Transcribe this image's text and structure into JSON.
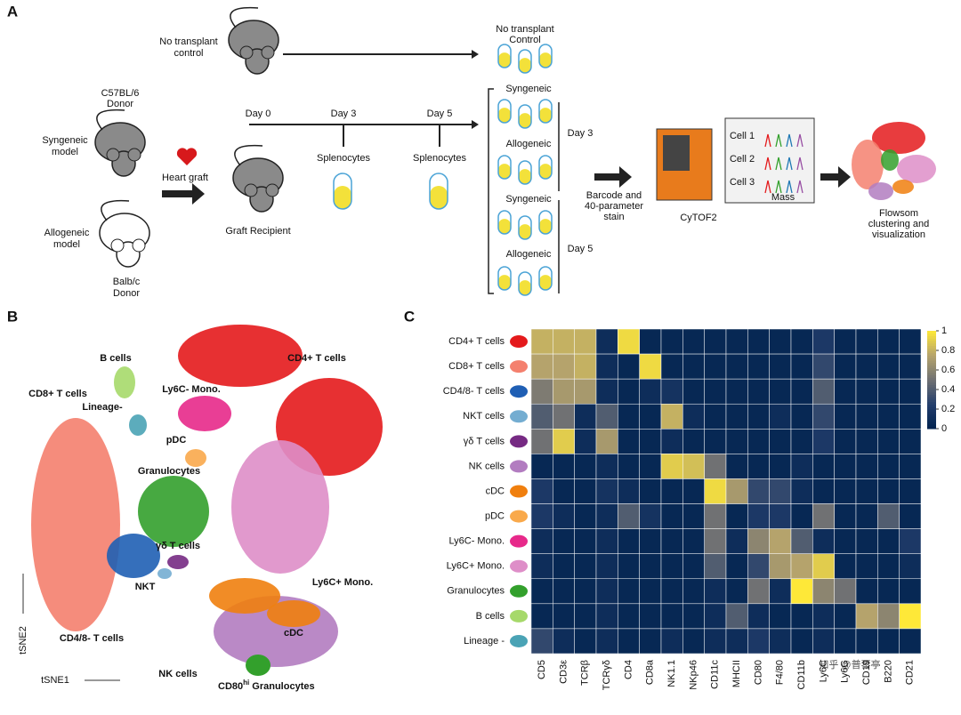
{
  "panel_a": {
    "label": "A",
    "no_transplant": [
      "No transplant",
      "control"
    ],
    "donor": [
      "C57BL/6",
      "Donor"
    ],
    "syngeneic_model": [
      "Syngeneic",
      "model"
    ],
    "allogeneic_model": [
      "Allogeneic",
      "model"
    ],
    "balb_donor": [
      "Balb/c",
      "Donor"
    ],
    "heart_graft": "Heart graft",
    "graft_recipient": "Graft Recipient",
    "days": [
      "Day 0",
      "Day 3",
      "Day 5"
    ],
    "splenocytes": [
      "Splenocytes",
      "Splenocytes"
    ],
    "control_header": [
      "No transplant",
      "Control"
    ],
    "groups": [
      "Syngeneic",
      "Allogeneic",
      "Syngeneic",
      "Allogeneic"
    ],
    "day_labels": [
      "Day 3",
      "Day 5"
    ],
    "barcode": [
      "Barcode and",
      "40-parameter",
      "stain"
    ],
    "cytof": "CyTOF2",
    "cells": [
      "Cell 1",
      "Cell 2",
      "Cell 3"
    ],
    "mass": "Mass",
    "flowsom": [
      "Flowsom",
      "clustering and",
      "visualization"
    ]
  },
  "panel_b": {
    "label": "B",
    "x_axis": "tSNE1",
    "y_axis": "tSNE2",
    "clusters": [
      {
        "label": "CD4+ T cells",
        "color": "#e41a1c"
      },
      {
        "label": "B cells",
        "color": "#a6d96a"
      },
      {
        "label": "CD8+ T cells",
        "color": "#f4806e"
      },
      {
        "label": "Ly6C- Mono.",
        "color": "#e7298a"
      },
      {
        "label": "Lineage-",
        "color": "#4aa3b5"
      },
      {
        "label": "pDC",
        "color": "#f9a94b"
      },
      {
        "label": "Granulocytes",
        "color": "#33a02c"
      },
      {
        "label": "γδ T cells",
        "color": "#762a83"
      },
      {
        "label": "NKT",
        "color": "#74add1"
      },
      {
        "label": "Ly6C+ Mono.",
        "color": "#de8ec8"
      },
      {
        "label": "CD4/8- T cells",
        "color": "#1f5fb4"
      },
      {
        "label": "cDC",
        "color": "#f07f0e"
      },
      {
        "label": "NK cells",
        "color": "#b27cc0"
      }
    ],
    "cd80_label": {
      "main": "CD80",
      "sup": "hi",
      "rest": " Granulocytes"
    }
  },
  "panel_c": {
    "label": "C"
  },
  "chart_data": {
    "type": "heatmap",
    "rows": [
      "CD4+ T cells",
      "CD8+ T cells",
      "CD4/8- T cells",
      "NKT cells",
      "γδ T cells",
      "NK cells",
      "cDC",
      "pDC",
      "Ly6C- Mono.",
      "Ly6C+ Mono.",
      "Granulocytes",
      "B cells",
      "Lineage -"
    ],
    "row_colors": [
      "#e41a1c",
      "#f4806e",
      "#1f5fb4",
      "#74add1",
      "#762a83",
      "#b27cc0",
      "#f07f0e",
      "#f9a94b",
      "#e7298a",
      "#de8ec8",
      "#33a02c",
      "#a6d96a",
      "#4aa3b5"
    ],
    "columns": [
      "CD5",
      "CD3ε",
      "TCRβ",
      "TCRγδ",
      "CD4",
      "CD8a",
      "NK1.1",
      "NKp46",
      "CD11c",
      "MHCII",
      "CD80",
      "F4/80",
      "CD11b",
      "Ly6C",
      "Ly6G",
      "CD19",
      "B220",
      "CD21"
    ],
    "values": [
      [
        0.8,
        0.8,
        0.8,
        0.1,
        0.95,
        0.05,
        0.05,
        0.05,
        0.05,
        0.05,
        0.05,
        0.05,
        0.05,
        0.2,
        0.05,
        0.05,
        0.05,
        0.05
      ],
      [
        0.75,
        0.75,
        0.8,
        0.1,
        0.05,
        0.95,
        0.05,
        0.05,
        0.05,
        0.05,
        0.05,
        0.05,
        0.05,
        0.3,
        0.05,
        0.05,
        0.05,
        0.05
      ],
      [
        0.55,
        0.7,
        0.7,
        0.1,
        0.05,
        0.1,
        0.15,
        0.05,
        0.05,
        0.05,
        0.05,
        0.05,
        0.05,
        0.4,
        0.05,
        0.05,
        0.05,
        0.05
      ],
      [
        0.4,
        0.5,
        0.1,
        0.4,
        0.05,
        0.05,
        0.8,
        0.1,
        0.05,
        0.05,
        0.05,
        0.1,
        0.05,
        0.3,
        0.05,
        0.05,
        0.05,
        0.05
      ],
      [
        0.5,
        0.9,
        0.1,
        0.7,
        0.05,
        0.05,
        0.1,
        0.05,
        0.05,
        0.05,
        0.05,
        0.05,
        0.05,
        0.2,
        0.05,
        0.05,
        0.05,
        0.05
      ],
      [
        0.05,
        0.05,
        0.05,
        0.1,
        0.05,
        0.05,
        0.9,
        0.85,
        0.5,
        0.05,
        0.05,
        0.05,
        0.1,
        0.05,
        0.05,
        0.05,
        0.05,
        0.05
      ],
      [
        0.2,
        0.05,
        0.05,
        0.15,
        0.1,
        0.05,
        0.05,
        0.05,
        0.95,
        0.7,
        0.3,
        0.3,
        0.1,
        0.05,
        0.05,
        0.05,
        0.05,
        0.05
      ],
      [
        0.2,
        0.1,
        0.05,
        0.1,
        0.4,
        0.15,
        0.05,
        0.05,
        0.5,
        0.05,
        0.2,
        0.2,
        0.05,
        0.5,
        0.05,
        0.05,
        0.4,
        0.05
      ],
      [
        0.1,
        0.05,
        0.05,
        0.1,
        0.05,
        0.05,
        0.05,
        0.05,
        0.5,
        0.1,
        0.6,
        0.75,
        0.4,
        0.1,
        0.05,
        0.05,
        0.05,
        0.2
      ],
      [
        0.1,
        0.05,
        0.05,
        0.1,
        0.05,
        0.05,
        0.05,
        0.05,
        0.4,
        0.05,
        0.3,
        0.7,
        0.75,
        0.9,
        0.05,
        0.05,
        0.05,
        0.1
      ],
      [
        0.05,
        0.05,
        0.05,
        0.1,
        0.05,
        0.05,
        0.05,
        0.05,
        0.1,
        0.05,
        0.5,
        0.1,
        1,
        0.6,
        0.5,
        0.05,
        0.05,
        0.05
      ],
      [
        0.05,
        0.05,
        0.05,
        0.1,
        0.05,
        0.05,
        0.05,
        0.05,
        0.1,
        0.4,
        0.1,
        0.05,
        0.05,
        0.1,
        0.05,
        0.75,
        0.6,
        1
      ],
      [
        0.3,
        0.1,
        0.05,
        0.1,
        0.05,
        0.05,
        0.1,
        0.05,
        0.1,
        0.1,
        0.2,
        0.1,
        0.05,
        0.1,
        0.05,
        0.05,
        0.05,
        0.05
      ]
    ],
    "zlim": [
      0,
      1
    ],
    "colorbar_ticks": [
      0,
      0.2,
      0.4,
      0.6,
      0.8,
      1
    ]
  },
  "watermark": "知乎 @普琴亭"
}
